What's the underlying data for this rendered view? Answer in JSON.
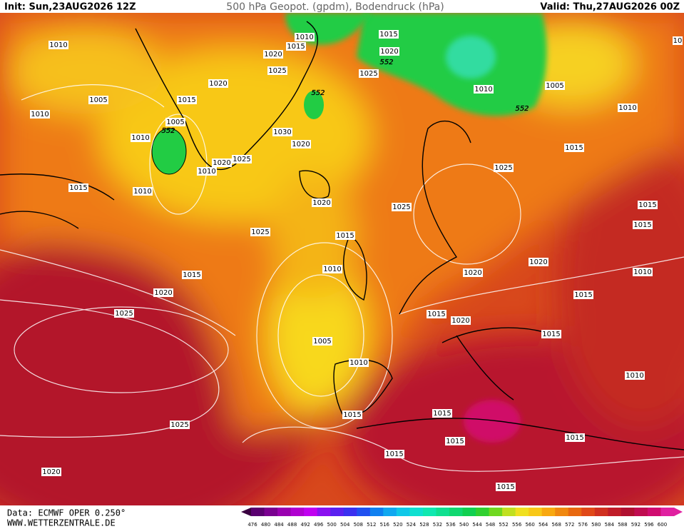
{
  "header": {
    "init": "Init: Sun,23AUG2026 12Z",
    "title": "500 hPa Geopot. (gpdm), Bodendruck (hPa)",
    "valid": "Valid: Thu,27AUG2026 00Z"
  },
  "pressure_labels": [
    1010,
    1010,
    1015,
    1015,
    1020,
    1020,
    1025,
    1025,
    1020,
    1005,
    1015,
    1010,
    1005,
    1010,
    1010,
    1005,
    1030,
    1010,
    1020,
    1015,
    1025,
    1020,
    1010,
    1025,
    1015,
    1010,
    1020,
    1025,
    1015,
    1025,
    1015,
    1015,
    1010,
    1020,
    1020,
    1010,
    1015,
    1020,
    1015,
    1025,
    1015,
    1020,
    1015,
    1005,
    1010,
    1010,
    1015,
    1015,
    1025,
    1015,
    1015,
    1015,
    1020,
    1015,
    10
  ],
  "geopotential_labels": [
    552,
    552,
    552,
    552
  ],
  "scale": [
    476,
    480,
    484,
    488,
    492,
    496,
    500,
    504,
    508,
    512,
    516,
    520,
    524,
    528,
    532,
    536,
    540,
    544,
    548,
    552,
    556,
    560,
    564,
    568,
    572,
    576,
    580,
    584,
    588,
    592,
    596,
    600
  ],
  "footer": {
    "source": "Data: ECMWF OPER 0.250°",
    "site": "WWW.WETTERZENTRALE.DE"
  }
}
